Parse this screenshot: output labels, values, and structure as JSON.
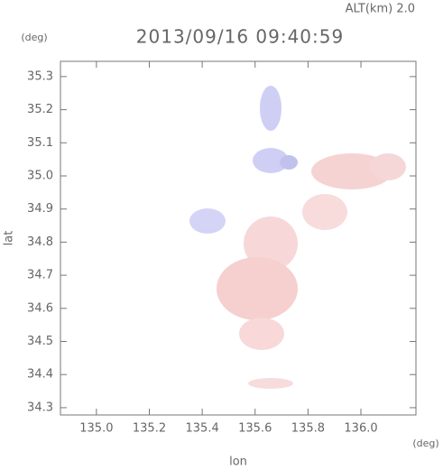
{
  "chart_data": {
    "type": "map",
    "title": "2013/09/16 09:40:59",
    "subtitle": "ALT(km) 2.0",
    "x_label": "lon",
    "y_label": "lat",
    "x_unit": "(deg)",
    "y_unit": "(deg)",
    "xlim": [
      134.864,
      136.208
    ],
    "ylim": [
      34.278,
      35.346
    ],
    "xticks": [
      {
        "value": 135,
        "label": "135.0"
      },
      135.2,
      135.4,
      135.6,
      135.8,
      {
        "value": 136,
        "label": "136.0"
      }
    ],
    "yticks": [
      34.3,
      34.4,
      34.5,
      34.6,
      34.7,
      34.8,
      34.9,
      {
        "value": 35,
        "label": "35.0"
      },
      35.1,
      35.2,
      35.3
    ]
  }
}
